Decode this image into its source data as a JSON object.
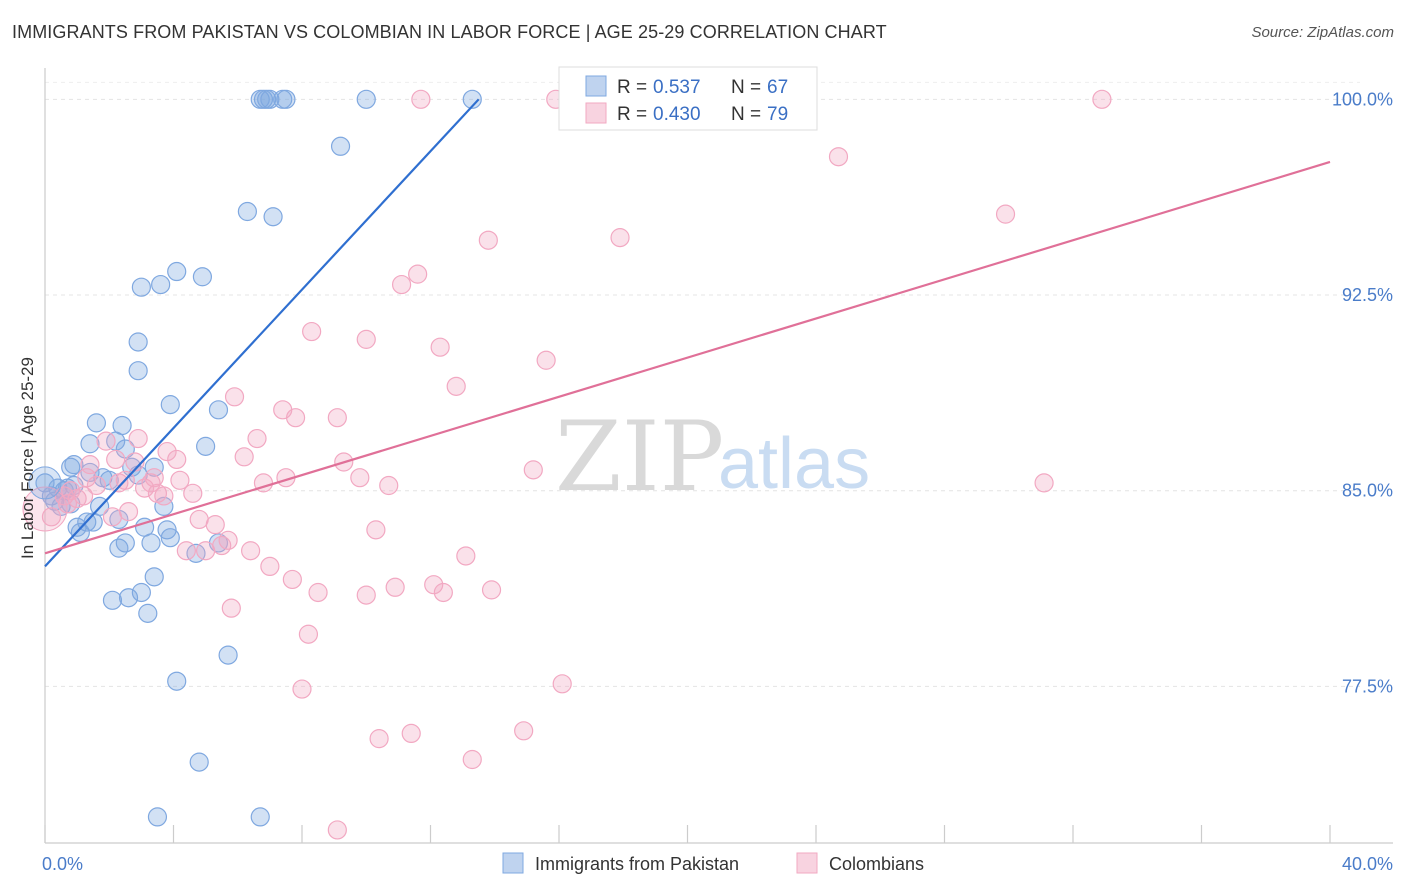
{
  "title": "IMMIGRANTS FROM PAKISTAN VS COLOMBIAN IN LABOR FORCE | AGE 25-29 CORRELATION CHART",
  "source": "Source: ZipAtlas.com",
  "watermark": {
    "zip": "ZIP",
    "atlas": "atlas"
  },
  "chart_data": {
    "type": "scatter",
    "xlabel": "",
    "ylabel": "In Labor Force | Age 25-29",
    "xlim": [
      0,
      40
    ],
    "ylim": [
      71.5,
      101.2
    ],
    "x_tick_labels": [
      {
        "value": 0,
        "label": "0.0%"
      },
      {
        "value": 40,
        "label": "40.0%"
      }
    ],
    "y_ticks": [
      {
        "value": 100,
        "label": "100.0%"
      },
      {
        "value": 92.5,
        "label": "92.5%"
      },
      {
        "value": 85,
        "label": "85.0%"
      },
      {
        "value": 77.5,
        "label": "77.5%"
      }
    ],
    "grid": true,
    "legend_position": "top-center",
    "series": [
      {
        "name": "Immigrants from Pakistan",
        "color": "#7fa8e0",
        "line_color": "#2f6fd0",
        "R": "0.537",
        "N": "67",
        "R_label": "R =",
        "N_label": "N =",
        "trend": {
          "x0": 0.0,
          "y0": 82.1,
          "x1": 13.5,
          "y1": 100.0
        },
        "points": [
          [
            0.0,
            85.3
          ],
          [
            0.3,
            84.6
          ],
          [
            0.4,
            85.1
          ],
          [
            0.5,
            84.4
          ],
          [
            0.6,
            85.0
          ],
          [
            0.7,
            85.1
          ],
          [
            0.8,
            84.5
          ],
          [
            0.8,
            85.9
          ],
          [
            0.9,
            86.0
          ],
          [
            0.9,
            85.2
          ],
          [
            1.0,
            83.6
          ],
          [
            1.1,
            83.4
          ],
          [
            1.3,
            83.8
          ],
          [
            1.4,
            86.8
          ],
          [
            1.4,
            85.7
          ],
          [
            1.5,
            83.8
          ],
          [
            1.6,
            87.6
          ],
          [
            1.7,
            84.4
          ],
          [
            1.8,
            85.5
          ],
          [
            2.0,
            85.4
          ],
          [
            2.1,
            80.8
          ],
          [
            2.2,
            86.9
          ],
          [
            2.3,
            82.8
          ],
          [
            2.3,
            83.9
          ],
          [
            2.4,
            87.5
          ],
          [
            2.5,
            83.0
          ],
          [
            2.5,
            86.6
          ],
          [
            2.6,
            80.9
          ],
          [
            2.7,
            85.9
          ],
          [
            2.9,
            85.6
          ],
          [
            2.9,
            89.6
          ],
          [
            2.9,
            90.7
          ],
          [
            3.0,
            81.1
          ],
          [
            3.0,
            92.8
          ],
          [
            3.1,
            83.6
          ],
          [
            3.2,
            80.3
          ],
          [
            3.3,
            83.0
          ],
          [
            3.4,
            81.7
          ],
          [
            3.4,
            85.9
          ],
          [
            3.5,
            72.5
          ],
          [
            3.6,
            92.9
          ],
          [
            3.7,
            84.4
          ],
          [
            3.8,
            83.5
          ],
          [
            3.9,
            83.2
          ],
          [
            3.9,
            88.3
          ],
          [
            4.1,
            77.7
          ],
          [
            4.1,
            93.4
          ],
          [
            4.7,
            82.6
          ],
          [
            4.8,
            74.6
          ],
          [
            4.9,
            93.2
          ],
          [
            5.0,
            86.7
          ],
          [
            5.4,
            88.1
          ],
          [
            5.4,
            83.0
          ],
          [
            5.7,
            78.7
          ],
          [
            6.3,
            95.7
          ],
          [
            6.7,
            100.0
          ],
          [
            6.7,
            72.5
          ],
          [
            6.8,
            100.0
          ],
          [
            6.9,
            100.0
          ],
          [
            7.0,
            100.0
          ],
          [
            7.1,
            95.5
          ],
          [
            7.4,
            100.0
          ],
          [
            7.5,
            100.0
          ],
          [
            9.2,
            98.2
          ],
          [
            10.0,
            100.0
          ],
          [
            13.3,
            100.0
          ],
          [
            0.2,
            84.8
          ]
        ]
      },
      {
        "name": "Colombians",
        "color": "#f2a8c2",
        "line_color": "#e07098",
        "R": "0.430",
        "N": "79",
        "R_label": "R =",
        "N_label": "N =",
        "trend": {
          "x0": 0.0,
          "y0": 82.6,
          "x1": 40.0,
          "y1": 97.6
        },
        "points": [
          [
            0.2,
            84.0
          ],
          [
            0.6,
            84.8
          ],
          [
            0.7,
            84.5
          ],
          [
            0.8,
            85.0
          ],
          [
            1.0,
            84.7
          ],
          [
            1.2,
            84.8
          ],
          [
            1.3,
            85.5
          ],
          [
            1.4,
            86.0
          ],
          [
            1.6,
            85.2
          ],
          [
            1.9,
            86.9
          ],
          [
            2.1,
            84.0
          ],
          [
            2.2,
            86.2
          ],
          [
            2.3,
            85.3
          ],
          [
            2.5,
            85.4
          ],
          [
            2.6,
            84.2
          ],
          [
            2.8,
            86.1
          ],
          [
            2.9,
            87.0
          ],
          [
            3.1,
            85.1
          ],
          [
            3.3,
            85.3
          ],
          [
            3.4,
            85.5
          ],
          [
            3.5,
            84.9
          ],
          [
            3.7,
            84.8
          ],
          [
            3.8,
            86.5
          ],
          [
            4.1,
            86.2
          ],
          [
            4.2,
            85.4
          ],
          [
            4.4,
            82.7
          ],
          [
            4.6,
            84.9
          ],
          [
            4.8,
            83.9
          ],
          [
            5.0,
            82.7
          ],
          [
            5.3,
            83.7
          ],
          [
            5.5,
            82.9
          ],
          [
            5.7,
            83.1
          ],
          [
            5.8,
            80.5
          ],
          [
            5.9,
            88.6
          ],
          [
            6.2,
            86.3
          ],
          [
            6.4,
            82.7
          ],
          [
            6.6,
            87.0
          ],
          [
            6.8,
            85.3
          ],
          [
            7.0,
            82.1
          ],
          [
            7.4,
            88.1
          ],
          [
            7.5,
            85.5
          ],
          [
            7.7,
            81.6
          ],
          [
            7.8,
            87.8
          ],
          [
            8.0,
            77.4
          ],
          [
            8.2,
            79.5
          ],
          [
            8.3,
            91.1
          ],
          [
            8.5,
            81.1
          ],
          [
            9.1,
            87.8
          ],
          [
            9.1,
            72.0
          ],
          [
            9.3,
            86.1
          ],
          [
            9.8,
            85.5
          ],
          [
            10.0,
            81.0
          ],
          [
            10.0,
            90.8
          ],
          [
            10.3,
            83.5
          ],
          [
            10.4,
            75.5
          ],
          [
            10.7,
            85.2
          ],
          [
            10.9,
            81.3
          ],
          [
            11.1,
            92.9
          ],
          [
            11.4,
            75.7
          ],
          [
            11.6,
            93.3
          ],
          [
            11.7,
            100.0
          ],
          [
            12.1,
            81.4
          ],
          [
            12.3,
            90.5
          ],
          [
            12.4,
            81.1
          ],
          [
            12.8,
            89.0
          ],
          [
            13.1,
            82.5
          ],
          [
            13.3,
            74.7
          ],
          [
            13.8,
            94.6
          ],
          [
            13.9,
            81.2
          ],
          [
            14.9,
            75.8
          ],
          [
            15.2,
            85.8
          ],
          [
            15.6,
            90.0
          ],
          [
            15.9,
            100.0
          ],
          [
            16.1,
            77.6
          ],
          [
            17.9,
            94.7
          ],
          [
            24.7,
            97.8
          ],
          [
            29.9,
            95.6
          ],
          [
            31.1,
            85.3
          ],
          [
            32.9,
            100.0
          ]
        ]
      }
    ]
  }
}
